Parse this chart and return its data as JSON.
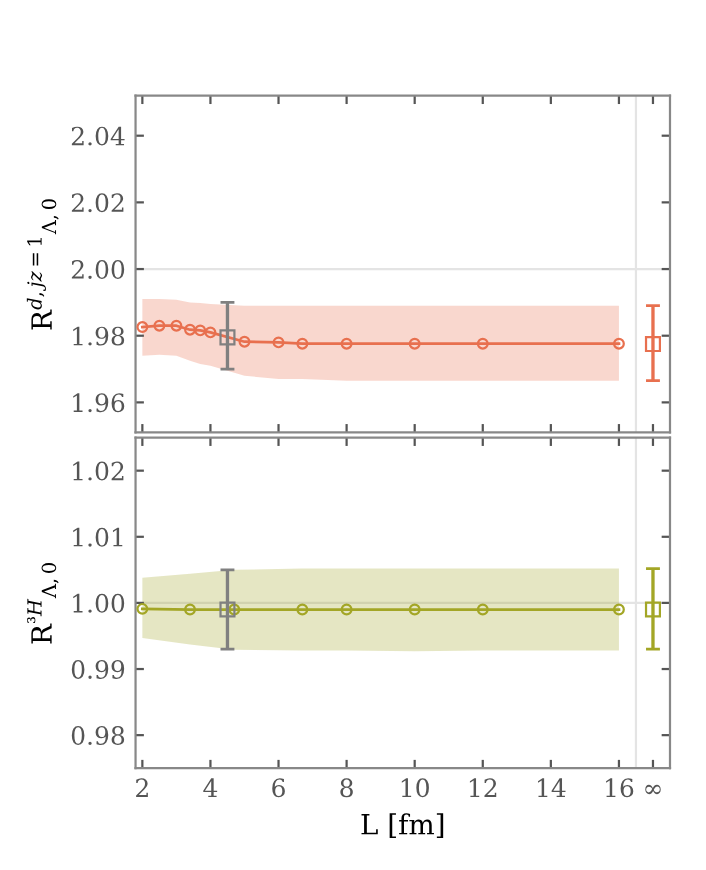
{
  "chart_data": [
    {
      "type": "line",
      "ylabel": "R$^{d,jz=1}$$_{Λ,0}$",
      "xlim": [
        1.8,
        17.5
      ],
      "ylim": [
        1.951,
        2.052
      ],
      "xticks": [
        2,
        4,
        6,
        8,
        10,
        12,
        14,
        16,
        {
          "value": 17,
          "label": null
        }
      ],
      "yticks": [
        1.96,
        1.98,
        {
          "value": 2.0,
          "label": "2.00"
        },
        2.02,
        2.04
      ],
      "tick_labels": "y",
      "grid": false,
      "ref_lines": [
        {
          "axis": "y",
          "value": 2.0,
          "color": "#e4e4e4"
        },
        {
          "axis": "x",
          "value": 16.5,
          "color": "#e4e4e4"
        }
      ],
      "series": [
        {
          "type": "line",
          "color": "#e8704f",
          "marker": "circle",
          "x": [
            2,
            2.5,
            3,
            3.4,
            3.7,
            4,
            5,
            6,
            6.7,
            8,
            10,
            12,
            16
          ],
          "values": [
            1.9826,
            1.983,
            1.983,
            1.9818,
            1.9816,
            1.981,
            1.9782,
            1.978,
            1.9776,
            1.9776,
            1.9776,
            1.9776,
            1.9776
          ],
          "lower": [
            1.974,
            1.9743,
            1.974,
            1.9725,
            1.9715,
            1.971,
            1.968,
            1.967,
            1.967,
            1.9665,
            1.9665,
            1.9665,
            1.9665
          ],
          "upper": [
            1.991,
            1.991,
            1.9908,
            1.99,
            1.9898,
            1.9895,
            1.989,
            1.989,
            1.989,
            1.989,
            1.989,
            1.989,
            1.989
          ]
        },
        {
          "type": "scatter",
          "color": "#808080",
          "marker": "square",
          "x": [
            4.5
          ],
          "values": [
            1.9795
          ],
          "errors": [
            [
              1.97,
              1.99
            ]
          ]
        },
        {
          "type": "scatter",
          "color": "#e8704f",
          "marker": "square",
          "x": [
            17
          ],
          "values": [
            1.9775
          ],
          "errors": [
            [
              1.9665,
              1.989
            ]
          ]
        }
      ]
    },
    {
      "type": "line",
      "ylabel": "R$^{³H}$$_{Λ,0}$",
      "xlabel": "L [fm]",
      "xlim": [
        1.8,
        17.5
      ],
      "ylim": [
        0.975,
        1.025
      ],
      "xticks": [
        2,
        4,
        6,
        8,
        10,
        12,
        14,
        16,
        {
          "value": 17,
          "label": "∞"
        }
      ],
      "yticks": [
        0.98,
        0.99,
        {
          "value": 1.0,
          "label": "1.00"
        },
        1.01,
        1.02
      ],
      "grid": false,
      "ref_lines": [
        {
          "axis": "y",
          "value": 1.0,
          "color": "#e4e4e4"
        },
        {
          "axis": "x",
          "value": 16.5,
          "color": "#e4e4e4"
        }
      ],
      "series": [
        {
          "type": "line",
          "color": "#a3a626",
          "marker": "circle",
          "x": [
            2,
            3.4,
            4.7,
            6.7,
            8,
            10,
            12,
            16
          ],
          "values": [
            0.9991,
            0.999,
            0.999,
            0.999,
            0.999,
            0.999,
            0.999,
            0.999
          ],
          "lower": [
            0.9947,
            0.9937,
            0.9929,
            0.9928,
            0.9928,
            0.9927,
            0.9928,
            0.9928
          ],
          "upper": [
            1.0038,
            1.0044,
            1.005,
            1.0052,
            1.0052,
            1.0052,
            1.0052,
            1.0052
          ]
        },
        {
          "type": "scatter",
          "color": "#808080",
          "marker": "square",
          "x": [
            4.5
          ],
          "values": [
            0.999
          ],
          "errors": [
            [
              0.993,
              1.005
            ]
          ]
        },
        {
          "type": "scatter",
          "color": "#a3a626",
          "marker": "square",
          "x": [
            17
          ],
          "values": [
            0.999
          ],
          "errors": [
            [
              0.993,
              1.0052
            ]
          ]
        }
      ]
    }
  ]
}
